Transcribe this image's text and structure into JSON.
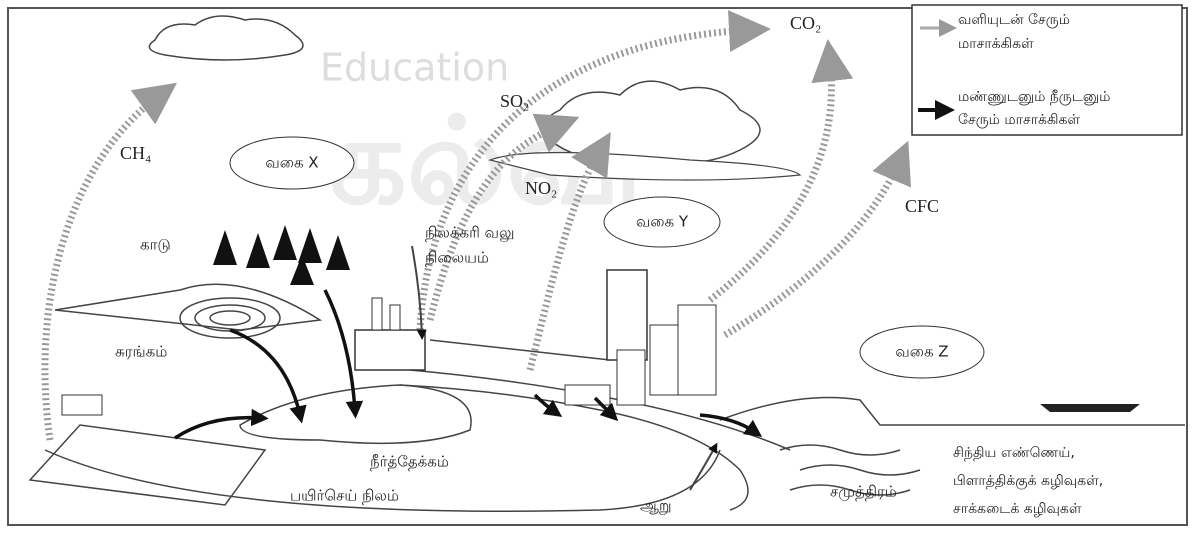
{
  "legend": {
    "air": [
      "வளியுடன் சேரும்",
      "மாசாக்கிகள்"
    ],
    "soil_water": [
      "மண்ணுடனும் நீருடனும்",
      "சேரும் மாசாக்கிகள்"
    ]
  },
  "gases": {
    "co2": "CO₂",
    "so2": "SO₂",
    "no2": "NO₂",
    "ch4": "CH₄",
    "cfc": "CFC"
  },
  "bubbles": [
    "வகை X",
    "வகை Y",
    "வகை Z"
  ],
  "labels": {
    "forest": "காடு",
    "power_station": [
      "நிலக்கரி வலு",
      "நிலையம்"
    ],
    "mine": "சுரங்கம்",
    "reservoir": "நீர்த்தேக்கம்",
    "cropland": "பயிர்செய் நிலம்",
    "river": "ஆறு",
    "ocean": "சமுத்திரம்",
    "ocean_waste": [
      "சிந்திய எண்ணெய்,",
      "பிளாத்திக்குக் கழிவுகள்,",
      "சாக்கடைக் கழிவுகள்"
    ]
  },
  "watermark": [
    "Education",
    "கல்வி"
  ]
}
